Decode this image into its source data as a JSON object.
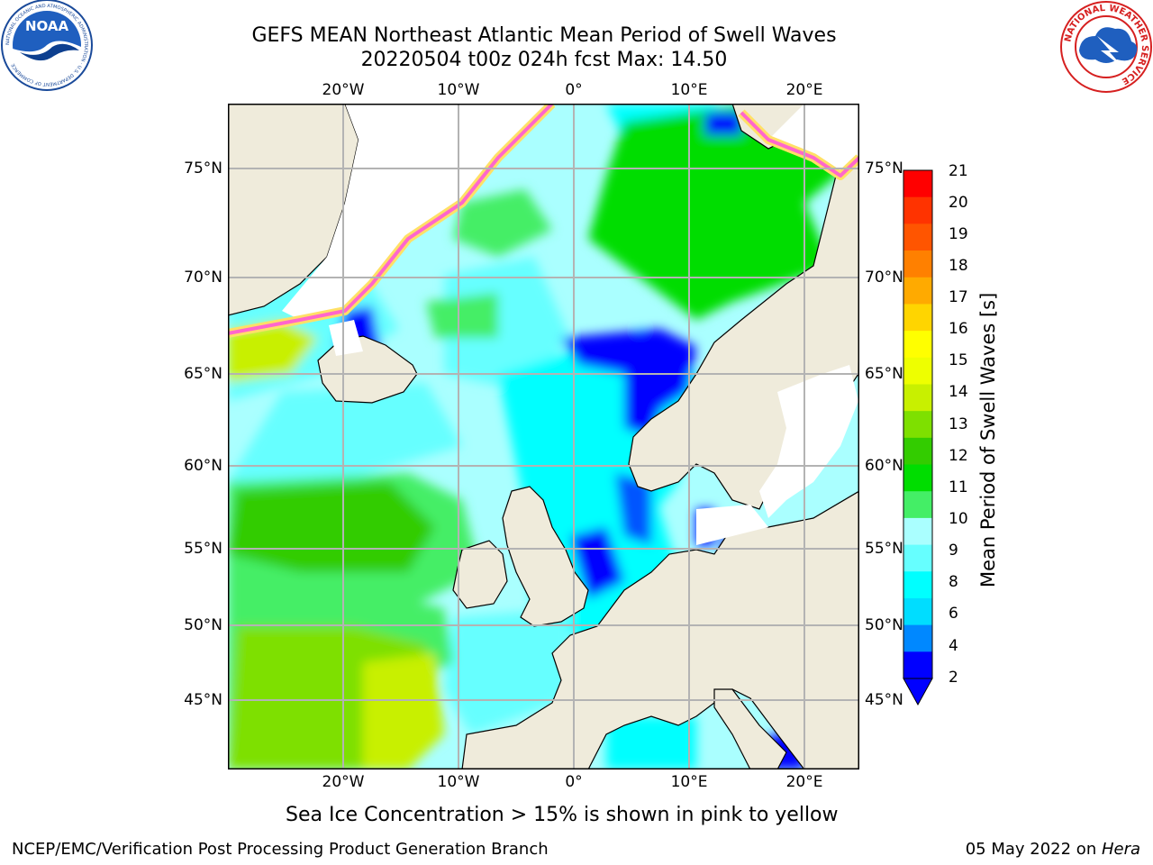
{
  "header": {
    "title_line1": "GEFS MEAN Northeast Atlantic Mean Period of Swell Waves",
    "title_line2": "20220504 t00z 024h fcst   Max: 14.50"
  },
  "logos": {
    "noaa_text": "NOAA",
    "noaa_ring": "NATIONAL OCEANIC AND ATMOSPHERIC ADMINISTRATION · U.S. DEPARTMENT OF COMMERCE",
    "nws_ring": "NATIONAL WEATHER SERVICE"
  },
  "map": {
    "lon_ticks": [
      "20°W",
      "10°W",
      "0°",
      "10°E",
      "20°E"
    ],
    "lat_ticks": [
      "75°N",
      "70°N",
      "65°N",
      "60°N",
      "55°N",
      "50°N",
      "45°N"
    ],
    "colors": {
      "land": "#efebdb",
      "grid": "#b3b3b3",
      "coast": "#000000",
      "ice_pink": "#ff66cc",
      "ice_yellow": "#ffe066"
    }
  },
  "colorbar": {
    "label": "Mean Period of Swell Waves [s]",
    "ticks": [
      "21",
      "20",
      "19",
      "18",
      "17",
      "16",
      "15",
      "14",
      "13",
      "12",
      "11",
      "10",
      "9",
      "8",
      "6",
      "4",
      "2"
    ],
    "colors": [
      "#ff0000",
      "#ff3300",
      "#ff5500",
      "#ff8000",
      "#ffaa00",
      "#ffd500",
      "#ffff00",
      "#eeff00",
      "#c8f000",
      "#7ee000",
      "#33cc00",
      "#00dd00",
      "#44ee66",
      "#aaffff",
      "#66ffff",
      "#00ffff",
      "#00ddff",
      "#0088ff",
      "#0000ff"
    ]
  },
  "notes": {
    "sea_ice": "Sea Ice Concentration > 15% is shown in pink to yellow"
  },
  "footer": {
    "left": "NCEP/EMC/Verification Post Processing Product Generation Branch",
    "date": "05 May 2022 on ",
    "machine": "Hera"
  }
}
